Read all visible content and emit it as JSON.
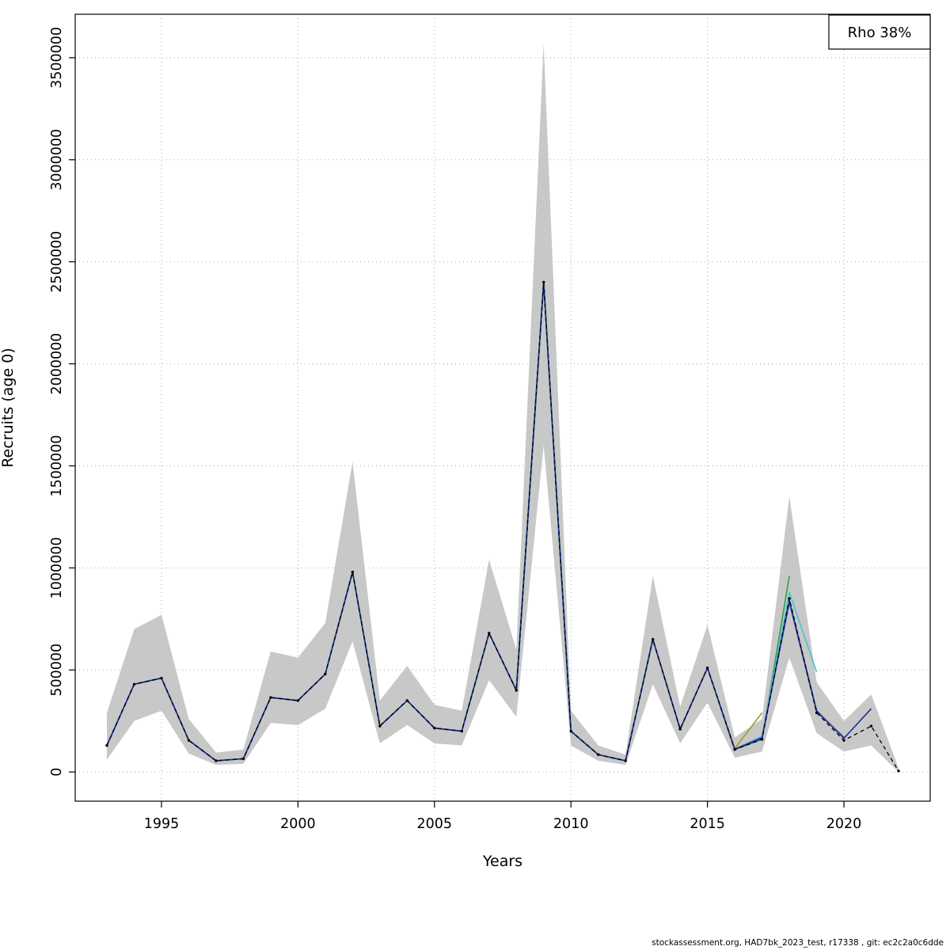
{
  "legend": {
    "label": "Rho 38%"
  },
  "footer": {
    "text": "stockassessment.org, HAD7bk_2023_test, r17338 , git: ec2c2a0c6dde"
  },
  "chart_data": {
    "type": "line",
    "title": "",
    "xlabel": "Years",
    "ylabel": "Recruits (age 0)",
    "xlim": [
      1991.84,
      2023.16
    ],
    "ylim": [
      -143000,
      3713000
    ],
    "x_ticks": [
      1995,
      2000,
      2005,
      2010,
      2015,
      2020
    ],
    "y_ticks": [
      0,
      500000,
      1000000,
      1500000,
      2000000,
      2500000,
      3000000,
      3500000
    ],
    "grid": true,
    "grid_color": "#a9a9a9",
    "years": [
      1993,
      1994,
      1995,
      1996,
      1997,
      1998,
      1999,
      2000,
      2001,
      2002,
      2003,
      2004,
      2005,
      2006,
      2007,
      2008,
      2009,
      2010,
      2011,
      2012,
      2013,
      2014,
      2015,
      2016,
      2017,
      2018,
      2019,
      2020,
      2021,
      2022
    ],
    "band": {
      "color": "#c8c8c8",
      "low": [
        60000,
        250000,
        300000,
        90000,
        35000,
        40000,
        240000,
        230000,
        310000,
        640000,
        140000,
        230000,
        140000,
        130000,
        450000,
        270000,
        1600000,
        130000,
        55000,
        35000,
        430000,
        140000,
        340000,
        70000,
        100000,
        560000,
        190000,
        100000,
        130000,
        0
      ],
      "high": [
        290000,
        700000,
        770000,
        260000,
        95000,
        110000,
        590000,
        560000,
        730000,
        1520000,
        350000,
        520000,
        330000,
        300000,
        1040000,
        600000,
        3570000,
        300000,
        130000,
        85000,
        960000,
        320000,
        720000,
        170000,
        260000,
        1350000,
        440000,
        250000,
        380000,
        20000
      ]
    },
    "series": [
      {
        "name": "retro-2017",
        "color": "#97a11f",
        "width": 1.6,
        "dash": "none",
        "points": false,
        "values": [
          130000,
          430000,
          460000,
          155000,
          55000,
          65000,
          365000,
          350000,
          480000,
          980000,
          225000,
          350000,
          215000,
          200000,
          680000,
          400000,
          2400000,
          200000,
          85000,
          55000,
          650000,
          210000,
          510000,
          115000,
          290000
        ]
      },
      {
        "name": "retro-2018",
        "color": "#2f9e52",
        "width": 1.6,
        "dash": "none",
        "points": false,
        "values": [
          130000,
          430000,
          460000,
          155000,
          55000,
          65000,
          365000,
          350000,
          480000,
          980000,
          225000,
          350000,
          215000,
          200000,
          680000,
          400000,
          2400000,
          200000,
          85000,
          55000,
          650000,
          210000,
          510000,
          110000,
          160000,
          960000
        ]
      },
      {
        "name": "retro-2019",
        "color": "#4cc2cf",
        "width": 1.6,
        "dash": "none",
        "points": false,
        "values": [
          130000,
          430000,
          460000,
          155000,
          55000,
          65000,
          365000,
          350000,
          480000,
          980000,
          225000,
          350000,
          215000,
          200000,
          680000,
          400000,
          2400000,
          200000,
          85000,
          55000,
          650000,
          210000,
          510000,
          112000,
          175000,
          880000,
          490000
        ]
      },
      {
        "name": "retro-2020",
        "color": "#3d56c0",
        "width": 1.6,
        "dash": "none",
        "points": false,
        "values": [
          130000,
          430000,
          460000,
          155000,
          55000,
          65000,
          365000,
          350000,
          480000,
          980000,
          225000,
          350000,
          215000,
          200000,
          680000,
          400000,
          2400000,
          200000,
          85000,
          55000,
          650000,
          210000,
          510000,
          112000,
          170000,
          830000,
          295000,
          170000
        ]
      },
      {
        "name": "retro-2021",
        "color": "#1f3096",
        "width": 1.6,
        "dash": "none",
        "points": false,
        "values": [
          130000,
          430000,
          460000,
          155000,
          55000,
          65000,
          365000,
          350000,
          480000,
          980000,
          225000,
          350000,
          215000,
          200000,
          680000,
          400000,
          2400000,
          200000,
          85000,
          55000,
          650000,
          210000,
          510000,
          110000,
          165000,
          840000,
          300000,
          165000,
          310000
        ]
      },
      {
        "name": "base-run",
        "color": "#000000",
        "width": 1.3,
        "dash": "5 4",
        "points": true,
        "values": [
          130000,
          430000,
          460000,
          155000,
          55000,
          65000,
          365000,
          350000,
          480000,
          980000,
          225000,
          350000,
          215000,
          200000,
          680000,
          400000,
          2400000,
          200000,
          85000,
          55000,
          650000,
          210000,
          510000,
          110000,
          160000,
          850000,
          290000,
          155000,
          225000,
          5000
        ]
      }
    ]
  }
}
